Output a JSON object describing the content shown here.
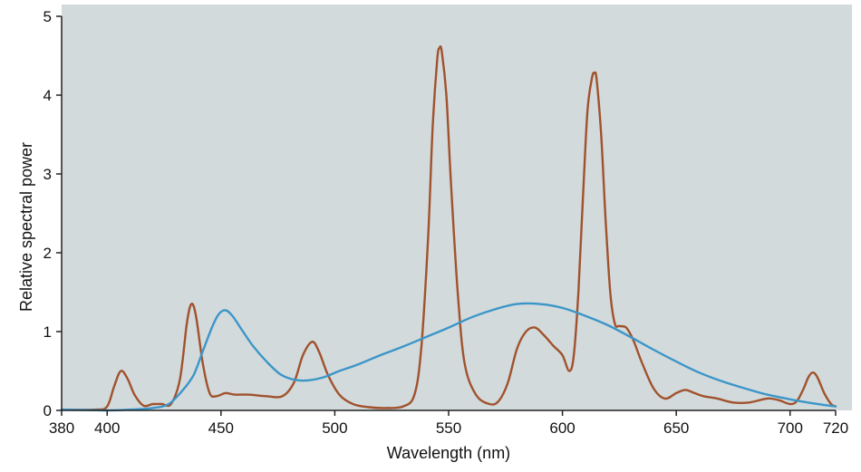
{
  "chart_data": {
    "type": "line",
    "xlabel": "Wavelength (nm)",
    "ylabel": "Relative spectral power",
    "xlim": [
      380,
      720
    ],
    "ylim": [
      0,
      5
    ],
    "x_ticks": [
      380,
      400,
      450,
      500,
      550,
      600,
      650,
      700,
      720
    ],
    "y_ticks": [
      0,
      1,
      2,
      3,
      4,
      5
    ],
    "grid": false,
    "background": "#d3dadc",
    "series": [
      {
        "color": "#a0522d",
        "points": [
          [
            380,
            0.01
          ],
          [
            395,
            0.01
          ],
          [
            400,
            0.05
          ],
          [
            403,
            0.3
          ],
          [
            406,
            0.5
          ],
          [
            409,
            0.4
          ],
          [
            412,
            0.2
          ],
          [
            416,
            0.06
          ],
          [
            420,
            0.08
          ],
          [
            424,
            0.08
          ],
          [
            428,
            0.08
          ],
          [
            432,
            0.4
          ],
          [
            435,
            1.1
          ],
          [
            437,
            1.35
          ],
          [
            439,
            1.2
          ],
          [
            442,
            0.6
          ],
          [
            445,
            0.22
          ],
          [
            448,
            0.18
          ],
          [
            452,
            0.22
          ],
          [
            456,
            0.2
          ],
          [
            462,
            0.2
          ],
          [
            470,
            0.18
          ],
          [
            477,
            0.18
          ],
          [
            482,
            0.35
          ],
          [
            486,
            0.7
          ],
          [
            490,
            0.87
          ],
          [
            493,
            0.75
          ],
          [
            497,
            0.45
          ],
          [
            502,
            0.2
          ],
          [
            508,
            0.08
          ],
          [
            515,
            0.04
          ],
          [
            522,
            0.03
          ],
          [
            530,
            0.05
          ],
          [
            535,
            0.2
          ],
          [
            538,
            0.8
          ],
          [
            541,
            2.2
          ],
          [
            543,
            3.6
          ],
          [
            545,
            4.45
          ],
          [
            546,
            4.6
          ],
          [
            547,
            4.55
          ],
          [
            549,
            4.0
          ],
          [
            551,
            2.9
          ],
          [
            554,
            1.5
          ],
          [
            557,
            0.6
          ],
          [
            562,
            0.2
          ],
          [
            568,
            0.08
          ],
          [
            572,
            0.12
          ],
          [
            576,
            0.35
          ],
          [
            580,
            0.78
          ],
          [
            584,
            1.0
          ],
          [
            588,
            1.05
          ],
          [
            592,
            0.95
          ],
          [
            596,
            0.82
          ],
          [
            600,
            0.7
          ],
          [
            603,
            0.5
          ],
          [
            605,
            0.7
          ],
          [
            607,
            1.5
          ],
          [
            609,
            2.7
          ],
          [
            611,
            3.8
          ],
          [
            613,
            4.22
          ],
          [
            614,
            4.28
          ],
          [
            615,
            4.2
          ],
          [
            617,
            3.5
          ],
          [
            619,
            2.4
          ],
          [
            621,
            1.5
          ],
          [
            623,
            1.1
          ],
          [
            625,
            1.07
          ],
          [
            628,
            1.05
          ],
          [
            631,
            0.9
          ],
          [
            635,
            0.6
          ],
          [
            640,
            0.28
          ],
          [
            645,
            0.15
          ],
          [
            650,
            0.22
          ],
          [
            654,
            0.26
          ],
          [
            658,
            0.22
          ],
          [
            662,
            0.18
          ],
          [
            668,
            0.15
          ],
          [
            675,
            0.1
          ],
          [
            682,
            0.1
          ],
          [
            690,
            0.15
          ],
          [
            695,
            0.13
          ],
          [
            700,
            0.08
          ],
          [
            703,
            0.12
          ],
          [
            706,
            0.28
          ],
          [
            708,
            0.42
          ],
          [
            710,
            0.48
          ],
          [
            712,
            0.42
          ],
          [
            715,
            0.22
          ],
          [
            718,
            0.08
          ],
          [
            720,
            0.05
          ]
        ]
      },
      {
        "color": "#3b96c8",
        "points": [
          [
            380,
            0.01
          ],
          [
            400,
            0.0
          ],
          [
            410,
            0.01
          ],
          [
            420,
            0.03
          ],
          [
            427,
            0.08
          ],
          [
            433,
            0.25
          ],
          [
            438,
            0.45
          ],
          [
            442,
            0.75
          ],
          [
            446,
            1.05
          ],
          [
            449,
            1.22
          ],
          [
            452,
            1.27
          ],
          [
            455,
            1.2
          ],
          [
            459,
            1.03
          ],
          [
            464,
            0.82
          ],
          [
            470,
            0.62
          ],
          [
            476,
            0.46
          ],
          [
            482,
            0.39
          ],
          [
            488,
            0.38
          ],
          [
            495,
            0.42
          ],
          [
            502,
            0.5
          ],
          [
            510,
            0.58
          ],
          [
            520,
            0.7
          ],
          [
            530,
            0.81
          ],
          [
            540,
            0.93
          ],
          [
            550,
            1.05
          ],
          [
            560,
            1.18
          ],
          [
            570,
            1.28
          ],
          [
            580,
            1.35
          ],
          [
            590,
            1.35
          ],
          [
            600,
            1.3
          ],
          [
            610,
            1.2
          ],
          [
            620,
            1.08
          ],
          [
            630,
            0.93
          ],
          [
            640,
            0.77
          ],
          [
            650,
            0.62
          ],
          [
            660,
            0.48
          ],
          [
            670,
            0.37
          ],
          [
            680,
            0.28
          ],
          [
            690,
            0.2
          ],
          [
            700,
            0.14
          ],
          [
            710,
            0.09
          ],
          [
            720,
            0.05
          ]
        ]
      }
    ]
  }
}
